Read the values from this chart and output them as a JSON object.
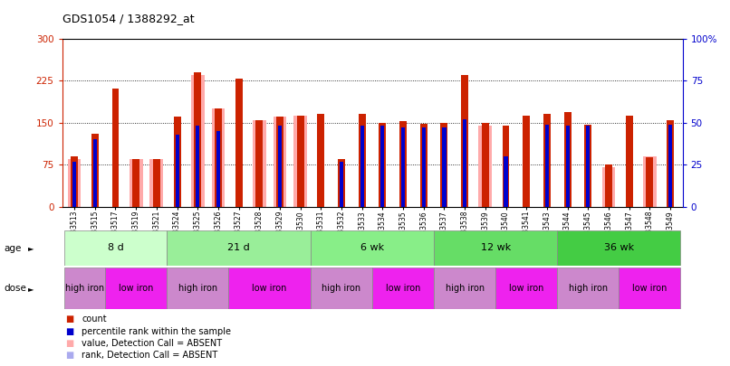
{
  "title": "GDS1054 / 1388292_at",
  "samples": [
    "GSM33513",
    "GSM33515",
    "GSM33517",
    "GSM33519",
    "GSM33521",
    "GSM33524",
    "GSM33525",
    "GSM33526",
    "GSM33527",
    "GSM33528",
    "GSM33529",
    "GSM33530",
    "GSM33531",
    "GSM33532",
    "GSM33533",
    "GSM33534",
    "GSM33535",
    "GSM33536",
    "GSM33537",
    "GSM33538",
    "GSM33539",
    "GSM33540",
    "GSM33541",
    "GSM33543",
    "GSM33544",
    "GSM33545",
    "GSM33546",
    "GSM33547",
    "GSM33548",
    "GSM33549"
  ],
  "count_values": [
    90,
    130,
    210,
    85,
    85,
    160,
    240,
    175,
    228,
    155,
    160,
    163,
    165,
    85,
    165,
    150,
    153,
    148,
    150,
    235,
    150,
    145,
    163,
    165,
    168,
    147,
    75,
    163,
    88,
    155
  ],
  "rank_values": [
    27,
    40,
    null,
    null,
    null,
    43,
    48,
    45,
    null,
    null,
    48,
    null,
    null,
    27,
    48,
    48,
    47,
    47,
    47,
    52,
    null,
    30,
    null,
    49,
    48,
    48,
    null,
    null,
    null,
    49
  ],
  "absent_count": [
    85,
    null,
    null,
    85,
    85,
    null,
    235,
    175,
    null,
    155,
    160,
    163,
    null,
    null,
    null,
    null,
    null,
    null,
    null,
    null,
    145,
    null,
    null,
    null,
    null,
    null,
    70,
    null,
    90,
    null
  ],
  "absent_rank": [
    null,
    null,
    null,
    null,
    null,
    null,
    null,
    47,
    null,
    47,
    null,
    47,
    null,
    null,
    null,
    null,
    null,
    null,
    null,
    null,
    null,
    null,
    null,
    null,
    null,
    null,
    null,
    null,
    28,
    null
  ],
  "ylim_left": [
    0,
    300
  ],
  "ylim_right": [
    0,
    100
  ],
  "yticks_left": [
    0,
    75,
    150,
    225,
    300
  ],
  "yticks_right": [
    0,
    25,
    50,
    75,
    100
  ],
  "ytick_labels_left": [
    "0",
    "75",
    "150",
    "225",
    "300"
  ],
  "ytick_labels_right": [
    "0",
    "25",
    "50",
    "75",
    "100%"
  ],
  "age_groups": [
    {
      "label": "8 d",
      "start": 0,
      "end": 5
    },
    {
      "label": "21 d",
      "start": 5,
      "end": 12
    },
    {
      "label": "6 wk",
      "start": 12,
      "end": 18
    },
    {
      "label": "12 wk",
      "start": 18,
      "end": 24
    },
    {
      "label": "36 wk",
      "start": 24,
      "end": 30
    }
  ],
  "age_colors": [
    "#ccffcc",
    "#99ee99",
    "#88ee88",
    "#66dd66",
    "#44cc44"
  ],
  "dose_groups": [
    {
      "label": "high iron",
      "start": 0,
      "end": 2
    },
    {
      "label": "low iron",
      "start": 2,
      "end": 5
    },
    {
      "label": "high iron",
      "start": 5,
      "end": 8
    },
    {
      "label": "low iron",
      "start": 8,
      "end": 12
    },
    {
      "label": "high iron",
      "start": 12,
      "end": 15
    },
    {
      "label": "low iron",
      "start": 15,
      "end": 18
    },
    {
      "label": "high iron",
      "start": 18,
      "end": 21
    },
    {
      "label": "low iron",
      "start": 21,
      "end": 24
    },
    {
      "label": "high iron",
      "start": 24,
      "end": 27
    },
    {
      "label": "low iron",
      "start": 27,
      "end": 30
    }
  ],
  "high_iron_color": "#cc88cc",
  "low_iron_color": "#ee22ee",
  "count_color": "#cc2200",
  "rank_color": "#0000cc",
  "absent_count_color": "#ffaaaa",
  "absent_rank_color": "#aaaaee",
  "bg_color": "#ffffff",
  "left_axis_color": "#cc2200",
  "right_axis_color": "#0000cc",
  "legend_items": [
    {
      "color": "#cc2200",
      "label": "count"
    },
    {
      "color": "#0000cc",
      "label": "percentile rank within the sample"
    },
    {
      "color": "#ffaaaa",
      "label": "value, Detection Call = ABSENT"
    },
    {
      "color": "#aaaaee",
      "label": "rank, Detection Call = ABSENT"
    }
  ]
}
